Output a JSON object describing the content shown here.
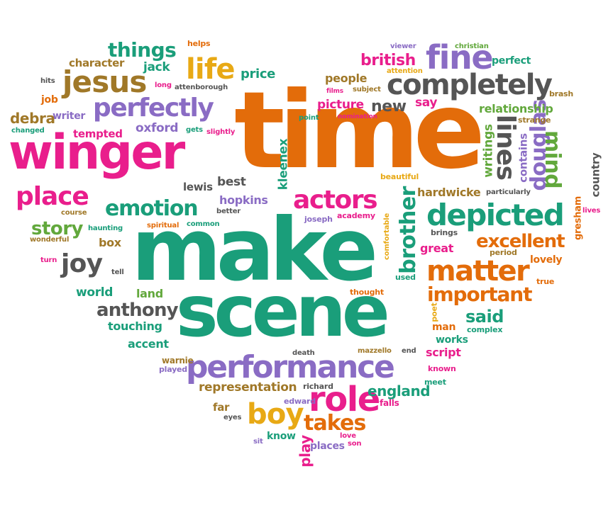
{
  "colors": {
    "pink": "#e91e8c",
    "orange": "#e36c0a",
    "teal": "#1a9e7a",
    "purple": "#8a6cc4",
    "green": "#62a83c",
    "gray": "#555555",
    "brown": "#a07828",
    "gold": "#e8a915"
  },
  "words": [
    {
      "text": "time",
      "color": "orange"
    },
    {
      "text": "make",
      "color": "teal"
    },
    {
      "text": "scene",
      "color": "teal"
    },
    {
      "text": "winger",
      "color": "pink"
    },
    {
      "text": "performance",
      "color": "purple"
    },
    {
      "text": "completely",
      "color": "gray"
    },
    {
      "text": "depicted",
      "color": "teal"
    },
    {
      "text": "matter",
      "color": "orange"
    },
    {
      "text": "jesus",
      "color": "brown"
    },
    {
      "text": "perfectly",
      "color": "purple"
    },
    {
      "text": "place",
      "color": "pink"
    },
    {
      "text": "emotion",
      "color": "teal"
    },
    {
      "text": "actors",
      "color": "pink"
    },
    {
      "text": "life",
      "color": "gold"
    },
    {
      "text": "fine",
      "color": "purple"
    },
    {
      "text": "role",
      "color": "pink"
    },
    {
      "text": "boy",
      "color": "gold"
    },
    {
      "text": "takes",
      "color": "orange"
    },
    {
      "text": "joy",
      "color": "gray"
    },
    {
      "text": "anthony",
      "color": "gray"
    },
    {
      "text": "important",
      "color": "orange"
    },
    {
      "text": "excellent",
      "color": "orange"
    },
    {
      "text": "douglas",
      "color": "purple"
    },
    {
      "text": "lines",
      "color": "gray"
    },
    {
      "text": "mind",
      "color": "green"
    },
    {
      "text": "brother",
      "color": "teal"
    },
    {
      "text": "things",
      "color": "teal"
    },
    {
      "text": "story",
      "color": "green"
    },
    {
      "text": "british",
      "color": "pink"
    },
    {
      "text": "representation",
      "color": "brown"
    },
    {
      "text": "england",
      "color": "teal"
    },
    {
      "text": "said",
      "color": "teal"
    },
    {
      "text": "new",
      "color": "gray"
    },
    {
      "text": "character",
      "color": "brown"
    },
    {
      "text": "debra",
      "color": "brown"
    },
    {
      "text": "tempted",
      "color": "pink"
    },
    {
      "text": "oxford",
      "color": "purple"
    },
    {
      "text": "writer",
      "color": "purple"
    },
    {
      "text": "picture",
      "color": "pink"
    },
    {
      "text": "relationship",
      "color": "green"
    },
    {
      "text": "hopkins",
      "color": "purple"
    },
    {
      "text": "lewis",
      "color": "gray"
    },
    {
      "text": "best",
      "color": "gray"
    },
    {
      "text": "kleenex",
      "color": "teal"
    },
    {
      "text": "hardwicke",
      "color": "brown"
    },
    {
      "text": "great",
      "color": "pink"
    },
    {
      "text": "lovely",
      "color": "orange"
    },
    {
      "text": "touching",
      "color": "teal"
    },
    {
      "text": "accent",
      "color": "teal"
    },
    {
      "text": "world",
      "color": "teal"
    },
    {
      "text": "land",
      "color": "green"
    },
    {
      "text": "box",
      "color": "brown"
    },
    {
      "text": "script",
      "color": "pink"
    },
    {
      "text": "works",
      "color": "teal"
    },
    {
      "text": "man",
      "color": "orange"
    },
    {
      "text": "people",
      "color": "brown"
    },
    {
      "text": "price",
      "color": "teal"
    },
    {
      "text": "jack",
      "color": "teal"
    },
    {
      "text": "perfect",
      "color": "teal"
    },
    {
      "text": "say",
      "color": "pink"
    },
    {
      "text": "writings",
      "color": "green"
    },
    {
      "text": "contains",
      "color": "purple"
    },
    {
      "text": "country",
      "color": "gray"
    },
    {
      "text": "gresham",
      "color": "orange"
    },
    {
      "text": "play",
      "color": "pink"
    },
    {
      "text": "places",
      "color": "purple"
    },
    {
      "text": "know",
      "color": "teal"
    },
    {
      "text": "far",
      "color": "brown"
    },
    {
      "text": "warnie",
      "color": "brown"
    },
    {
      "text": "played",
      "color": "purple"
    },
    {
      "text": "richard",
      "color": "gray"
    },
    {
      "text": "edward",
      "color": "purple"
    },
    {
      "text": "falls",
      "color": "pink"
    },
    {
      "text": "meet",
      "color": "teal"
    },
    {
      "text": "known",
      "color": "pink"
    },
    {
      "text": "complex",
      "color": "teal"
    },
    {
      "text": "poet",
      "color": "gold"
    },
    {
      "text": "thought",
      "color": "orange"
    },
    {
      "text": "used",
      "color": "teal"
    },
    {
      "text": "brings",
      "color": "gray"
    },
    {
      "text": "period",
      "color": "brown"
    },
    {
      "text": "true",
      "color": "orange"
    },
    {
      "text": "comfortable",
      "color": "gold"
    },
    {
      "text": "joseph",
      "color": "purple"
    },
    {
      "text": "academy",
      "color": "pink"
    },
    {
      "text": "beautiful",
      "color": "gold"
    },
    {
      "text": "particularly",
      "color": "gray"
    },
    {
      "text": "strange",
      "color": "brown"
    },
    {
      "text": "brash",
      "color": "brown"
    },
    {
      "text": "helps",
      "color": "orange"
    },
    {
      "text": "viewer",
      "color": "purple"
    },
    {
      "text": "christian",
      "color": "green"
    },
    {
      "text": "attention",
      "color": "gold"
    },
    {
      "text": "films",
      "color": "pink"
    },
    {
      "text": "subject",
      "color": "brown"
    },
    {
      "text": "nomination",
      "color": "pink"
    },
    {
      "text": "point",
      "color": "teal"
    },
    {
      "text": "hits",
      "color": "gray"
    },
    {
      "text": "job",
      "color": "orange"
    },
    {
      "text": "long",
      "color": "pink"
    },
    {
      "text": "attenborough",
      "color": "gray"
    },
    {
      "text": "changed",
      "color": "teal"
    },
    {
      "text": "gets",
      "color": "teal"
    },
    {
      "text": "slightly",
      "color": "pink"
    },
    {
      "text": "course",
      "color": "brown"
    },
    {
      "text": "better",
      "color": "gray"
    },
    {
      "text": "haunting",
      "color": "teal"
    },
    {
      "text": "spiritual",
      "color": "orange"
    },
    {
      "text": "common",
      "color": "teal"
    },
    {
      "text": "wonderful",
      "color": "brown"
    },
    {
      "text": "turn",
      "color": "pink"
    },
    {
      "text": "tell",
      "color": "gray"
    },
    {
      "text": "death",
      "color": "gray"
    },
    {
      "text": "mazzello",
      "color": "brown"
    },
    {
      "text": "end",
      "color": "gray"
    },
    {
      "text": "eyes",
      "color": "gray"
    },
    {
      "text": "sit",
      "color": "purple"
    },
    {
      "text": "love",
      "color": "pink"
    },
    {
      "text": "son",
      "color": "pink"
    },
    {
      "text": "lives",
      "color": "pink"
    }
  ]
}
